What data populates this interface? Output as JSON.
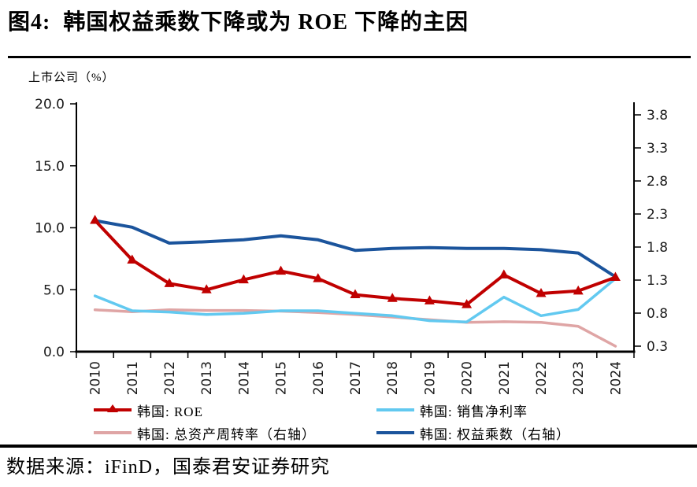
{
  "title": "图4:  韩国权益乘数下降或为 ROE 下降的主因",
  "unit_label": "上市公司（%）",
  "footer": {
    "source": "数据来源：iFinD，国泰君安证券研究"
  },
  "colors": {
    "roe": "#C00000",
    "net_margin": "#62C9F0",
    "asset_turnover": "#DFA5A5",
    "equity_multiplier": "#1B549C",
    "axis": "#000000"
  },
  "chart_data": {
    "type": "line",
    "title": "韩国权益乘数下降或为 ROE 下降的主因",
    "x": [
      "2010",
      "2011",
      "2012",
      "2013",
      "2014",
      "2015",
      "2016",
      "2017",
      "2018",
      "2019",
      "2020",
      "2021",
      "2022",
      "2023",
      "2024"
    ],
    "left_axis": {
      "label": "上市公司（%）",
      "ticks": [
        "20.0",
        "15.0",
        "10.0",
        "5.0",
        "0.0"
      ],
      "range": [
        0.0,
        20.0
      ]
    },
    "right_axis": {
      "ticks": [
        "3.8",
        "3.3",
        "2.8",
        "2.3",
        "1.8",
        "1.3",
        "0.8",
        "0.3"
      ],
      "range": [
        0.3,
        3.8
      ]
    },
    "grid": "off",
    "legend_position": "bottom",
    "legend_columns": 2,
    "draw_order": [
      2,
      1,
      3,
      0
    ],
    "series": [
      {
        "name": "韩国: ROE",
        "axis": "left",
        "color": "#C00000",
        "marker": "triangle",
        "width": 4,
        "values": [
          10.6,
          7.4,
          5.5,
          5.0,
          5.8,
          6.5,
          5.9,
          4.6,
          4.3,
          4.1,
          3.8,
          6.2,
          4.7,
          4.9,
          6.0
        ]
      },
      {
        "name": "韩国: 销售净利率",
        "axis": "left",
        "color": "#62C9F0",
        "marker": "none",
        "width": 3.5,
        "values": [
          4.5,
          3.3,
          3.2,
          3.0,
          3.1,
          3.3,
          3.3,
          3.1,
          2.9,
          2.5,
          2.4,
          4.4,
          2.9,
          3.4,
          5.9
        ]
      },
      {
        "name": "韩国: 总资产周转率（右轴）",
        "axis": "right",
        "color": "#DFA5A5",
        "marker": "none",
        "width": 3.5,
        "values": [
          0.85,
          0.82,
          0.85,
          0.84,
          0.84,
          0.83,
          0.81,
          0.78,
          0.74,
          0.7,
          0.66,
          0.67,
          0.66,
          0.6,
          0.3
        ]
      },
      {
        "name": "韩国: 权益乘数（右轴）",
        "axis": "right",
        "color": "#1B549C",
        "marker": "none",
        "width": 4,
        "values": [
          2.2,
          2.1,
          1.86,
          1.88,
          1.91,
          1.97,
          1.91,
          1.75,
          1.78,
          1.79,
          1.78,
          1.78,
          1.76,
          1.71,
          1.35
        ]
      }
    ]
  }
}
